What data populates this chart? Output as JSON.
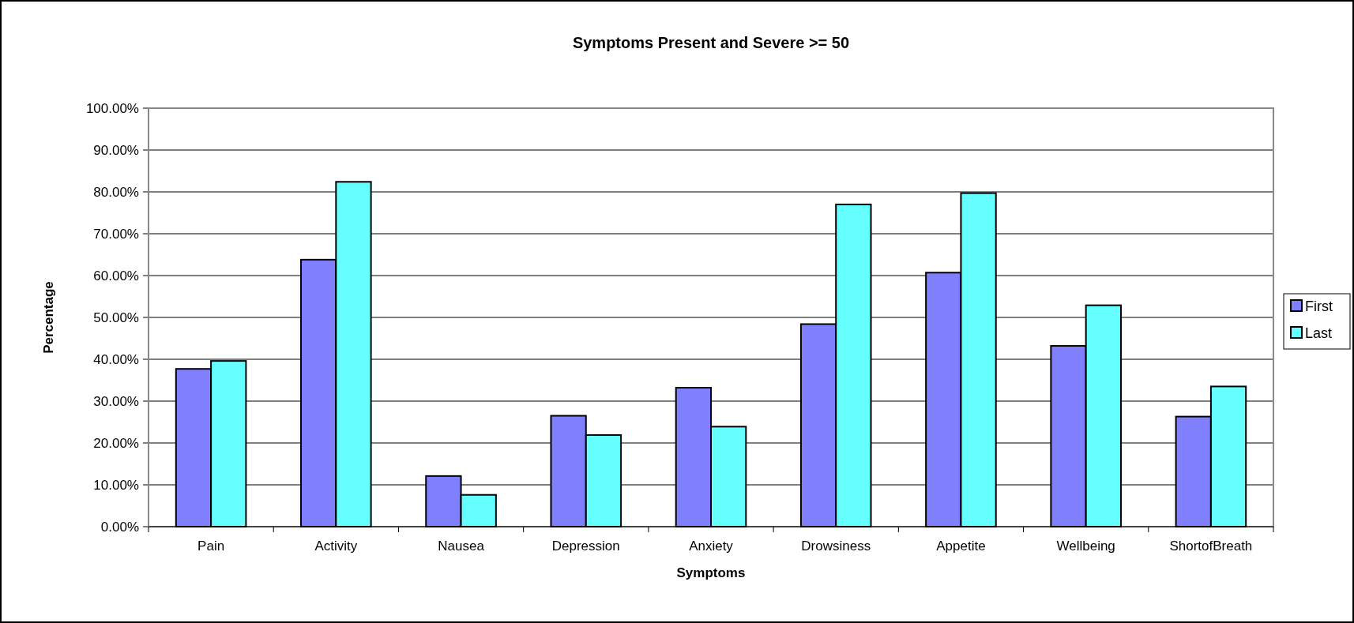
{
  "chart_data": {
    "type": "bar",
    "title": "Symptoms Present and Severe >= 50",
    "xlabel": "Symptoms",
    "ylabel": "Percentage",
    "categories": [
      "Pain",
      "Activity",
      "Nausea",
      "Depression",
      "Anxiety",
      "Drowsiness",
      "Appetite",
      "Wellbeing",
      "ShortofBreath"
    ],
    "series": [
      {
        "name": "First",
        "color": "#8080ff",
        "values": [
          37.7,
          63.8,
          12.1,
          26.5,
          33.2,
          48.4,
          60.7,
          43.2,
          26.3
        ]
      },
      {
        "name": "Last",
        "color": "#66ffff",
        "values": [
          39.6,
          82.4,
          7.6,
          21.9,
          23.9,
          77.0,
          79.7,
          52.9,
          33.5
        ]
      }
    ],
    "ylim": [
      0,
      100
    ],
    "yticks": [
      {
        "value": 0,
        "label": "0.00%"
      },
      {
        "value": 10,
        "label": "10.00%"
      },
      {
        "value": 20,
        "label": "20.00%"
      },
      {
        "value": 30,
        "label": "30.00%"
      },
      {
        "value": 40,
        "label": "40.00%"
      },
      {
        "value": 50,
        "label": "50.00%"
      },
      {
        "value": 60,
        "label": "60.00%"
      },
      {
        "value": 70,
        "label": "70.00%"
      },
      {
        "value": 80,
        "label": "80.00%"
      },
      {
        "value": 90,
        "label": "90.00%"
      },
      {
        "value": 100,
        "label": "100.00%"
      }
    ],
    "grid": "y",
    "legend": "right"
  }
}
